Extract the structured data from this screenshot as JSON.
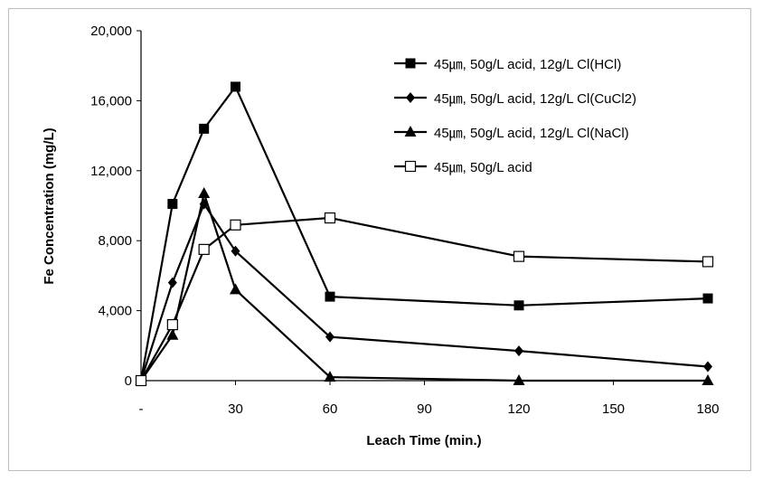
{
  "chart_data": {
    "type": "line",
    "title": "",
    "xlabel": "Leach Time (min.)",
    "ylabel": "Fe Concentration (mg/L)",
    "xlim": [
      0,
      180
    ],
    "ylim": [
      0,
      20000
    ],
    "xticks": [
      0,
      30,
      60,
      90,
      120,
      150,
      180
    ],
    "xtick_labels": [
      "-",
      "30",
      "60",
      "90",
      "120",
      "150",
      "180"
    ],
    "yticks": [
      0,
      4000,
      8000,
      12000,
      16000,
      20000
    ],
    "ytick_labels": [
      "0",
      "4,000",
      "8,000",
      "12,000",
      "16,000",
      "20,000"
    ],
    "grid": false,
    "legend_position": "top-right",
    "series": [
      {
        "name": "45㎛, 50g/L acid, 12g/L Cl(HCl)",
        "marker": "filled-square",
        "x": [
          0,
          10,
          20,
          30,
          60,
          120,
          180
        ],
        "values": [
          0,
          10100,
          14400,
          16800,
          4800,
          4300,
          4700
        ]
      },
      {
        "name": "45㎛, 50g/L acid, 12g/L Cl(CuCl2)",
        "marker": "filled-diamond",
        "x": [
          0,
          10,
          20,
          30,
          60,
          120,
          180
        ],
        "values": [
          0,
          5600,
          10100,
          7400,
          2500,
          1700,
          800
        ]
      },
      {
        "name": "45㎛, 50g/L acid, 12g/L Cl(NaCl)",
        "marker": "filled-triangle",
        "x": [
          0,
          10,
          20,
          30,
          60,
          120,
          180
        ],
        "values": [
          0,
          2600,
          10700,
          5200,
          200,
          0,
          0
        ]
      },
      {
        "name": "45㎛, 50g/L acid",
        "marker": "open-square",
        "x": [
          0,
          10,
          20,
          30,
          60,
          120,
          180
        ],
        "values": [
          0,
          3200,
          7500,
          8900,
          9300,
          7100,
          6800
        ]
      }
    ]
  }
}
